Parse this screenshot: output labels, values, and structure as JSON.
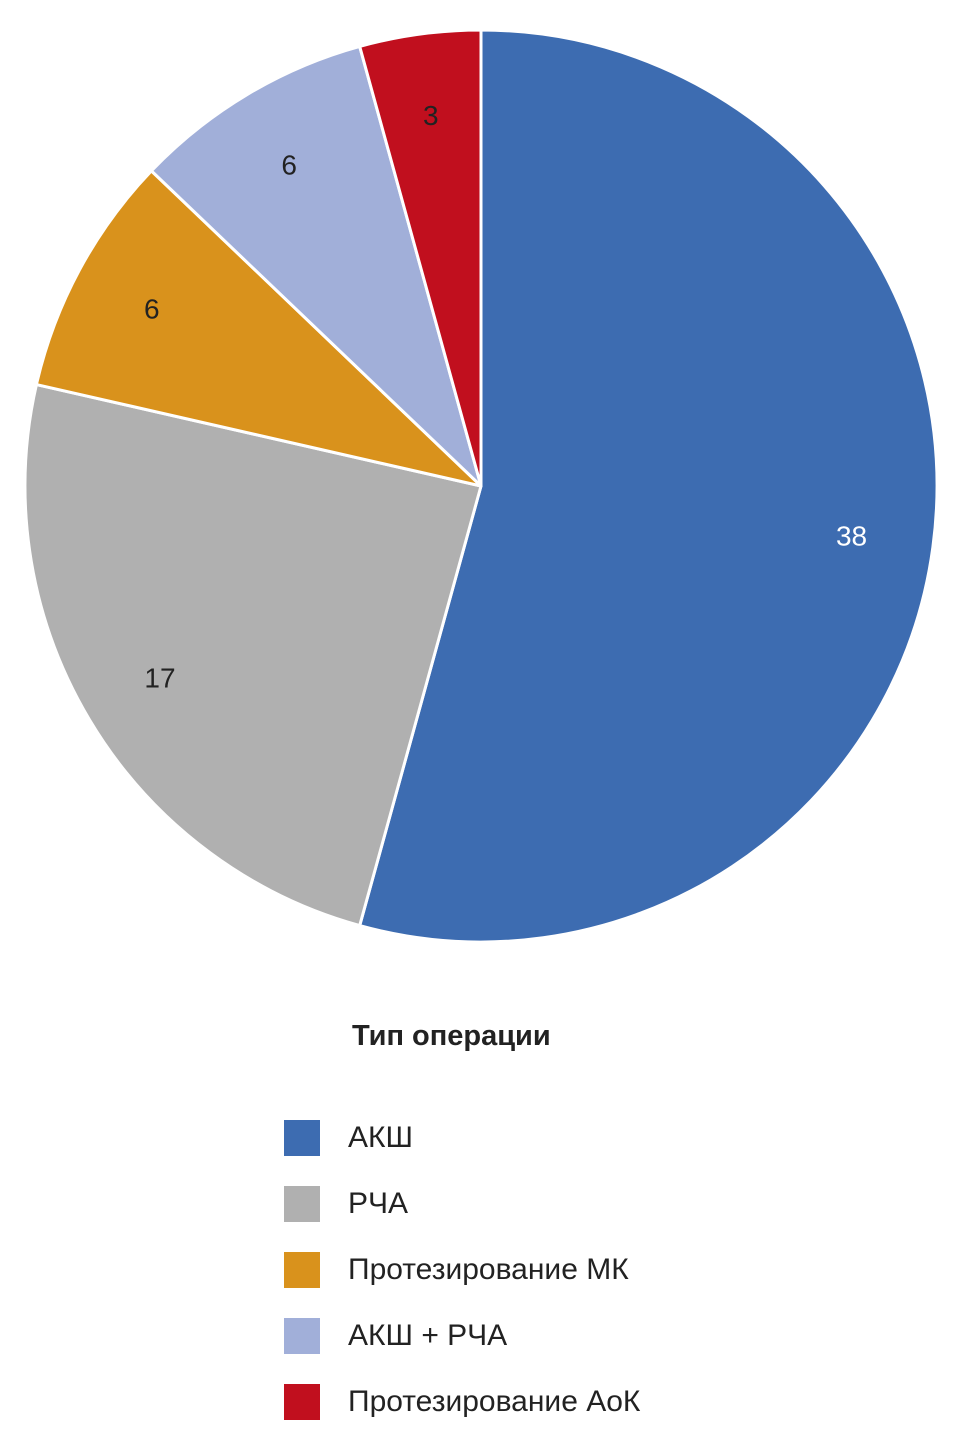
{
  "chart_data": {
    "type": "pie",
    "legend_title": "Тип операции",
    "legend_position": "bottom",
    "slices": [
      {
        "name": "АКШ",
        "value": 38,
        "label": "38",
        "color": "#3d6cb1",
        "label_color": "#ffffff"
      },
      {
        "name": "РЧА",
        "value": 17,
        "label": "17",
        "color": "#b0b0b0",
        "label_color": "#222222"
      },
      {
        "name": "Протезирование МК",
        "value": 6,
        "label": "6",
        "color": "#d9921c",
        "label_color": "#222222"
      },
      {
        "name": "АКШ + РЧА",
        "value": 6,
        "label": "6",
        "color": "#a1afd9",
        "label_color": "#222222"
      },
      {
        "name": "Протезирование АоК",
        "value": 3,
        "label": "3",
        "color": "#c10f1e",
        "label_color": "#222222"
      }
    ]
  }
}
